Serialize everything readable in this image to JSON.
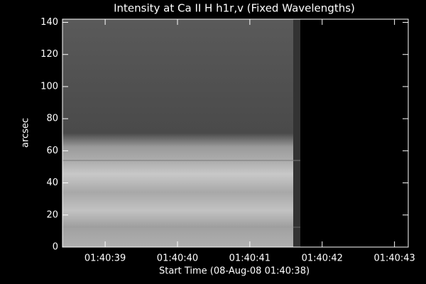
{
  "chart_data": {
    "type": "image",
    "title": "Intensity at Ca II H h1r,v (Fixed Wavelengths)",
    "xlabel": "Start Time (08-Aug-08 01:40:38)",
    "ylabel": "arcsec",
    "xlim": [
      0.41,
      5.19
    ],
    "xticks": [
      {
        "value": 1,
        "label": "01:40:39"
      },
      {
        "value": 2,
        "label": "01:40:40"
      },
      {
        "value": 3,
        "label": "01:40:41"
      },
      {
        "value": 4,
        "label": "01:40:42"
      },
      {
        "value": 5,
        "label": "01:40:43"
      }
    ],
    "ylim": [
      0,
      142
    ],
    "yticks": [
      0,
      20,
      40,
      60,
      80,
      100,
      120,
      140
    ]
  }
}
